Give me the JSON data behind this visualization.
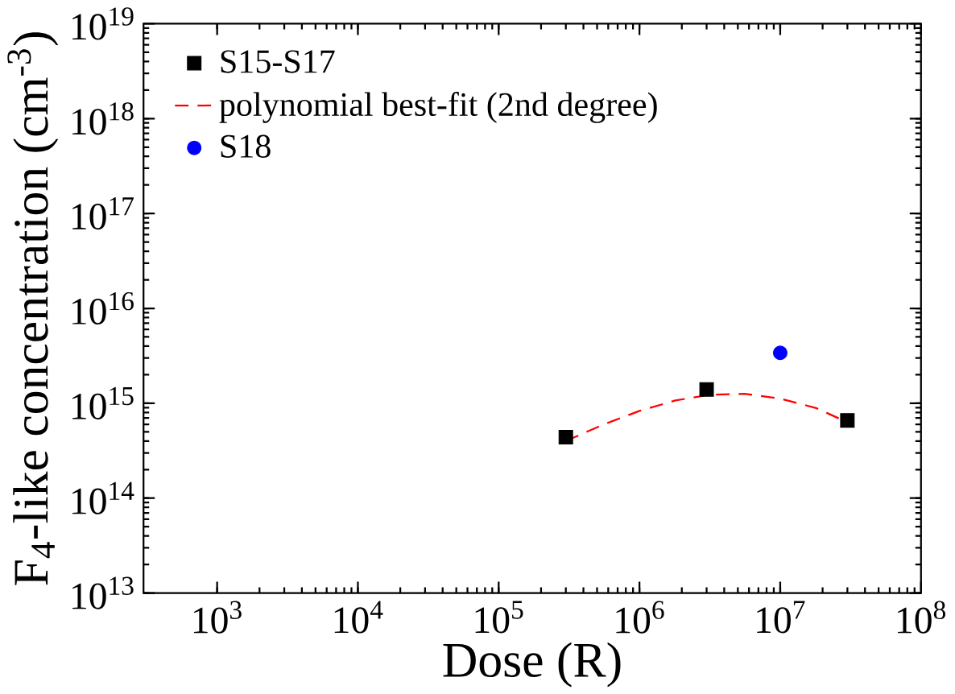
{
  "chart_data": {
    "type": "scatter",
    "xlabel": "Dose (R)",
    "ylabel": "F$_{4}$-like concentration (cm$^{-3}$)",
    "log": "xy",
    "grid": false,
    "legend": "top left",
    "xlim": [
      300,
      100000000
    ],
    "ylim": [
      10000000000000.0,
      1e+19
    ],
    "xticks": [
      {
        "value": 1000,
        "label": "10$^{3}$"
      },
      {
        "value": 10000,
        "label": "10$^{4}$"
      },
      {
        "value": 100000,
        "label": "10$^{5}$"
      },
      {
        "value": 1000000,
        "label": "10$^{6}$"
      },
      {
        "value": 10000000,
        "label": "10$^{7}$"
      },
      {
        "value": 100000000,
        "label": "10$^{8}$"
      }
    ],
    "yticks": [
      {
        "value": 10000000000000.0,
        "label": "10$^{13}$"
      },
      {
        "value": 100000000000000.0,
        "label": "10$^{14}$"
      },
      {
        "value": 1000000000000000.0,
        "label": "10$^{15}$"
      },
      {
        "value": 1e+16,
        "label": "10$^{16}$"
      },
      {
        "value": 1e+17,
        "label": "10$^{17}$"
      },
      {
        "value": 1e+18,
        "label": "10$^{18}$"
      },
      {
        "value": 1e+19,
        "label": "10$^{19}$"
      }
    ],
    "series": [
      {
        "name": "S15-S17",
        "marker": "square",
        "color": "#000000",
        "x": [
          300000,
          3000000,
          30000000
        ],
        "values": [
          440000000000000.0,
          1400000000000000.0,
          660000000000000.0
        ]
      },
      {
        "name": "polynomial best-fit (2nd degree)",
        "type": "line",
        "marker": "none",
        "line_style": "dashed",
        "color": "#ff0000",
        "x": [
          300000,
          560000,
          1000000,
          1800000,
          3200000,
          5600000,
          10000000,
          18000000,
          30000000
        ],
        "values": [
          400000000000000.0,
          600000000000000.0,
          830000000000000.0,
          1070000000000000.0,
          1230000000000000.0,
          1260000000000000.0,
          1120000000000000.0,
          890000000000000.0,
          630000000000000.0
        ]
      },
      {
        "name": "S18",
        "marker": "circle",
        "color": "#0000ff",
        "x": [
          10000000
        ],
        "values": [
          3400000000000000.0
        ]
      }
    ]
  }
}
